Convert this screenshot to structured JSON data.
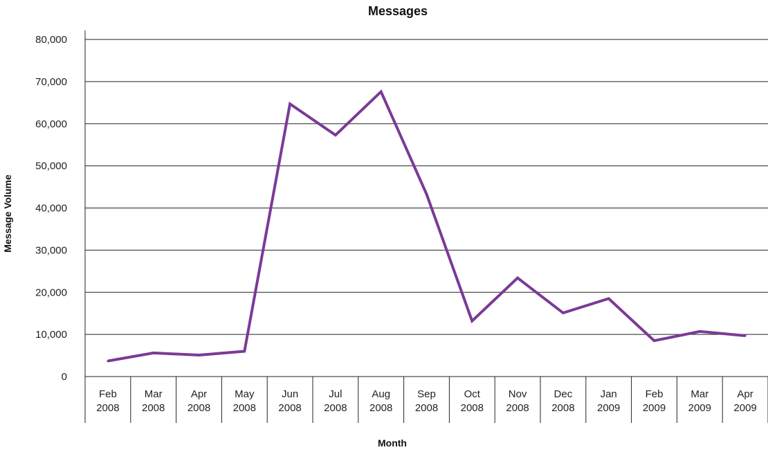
{
  "chart_data": {
    "type": "line",
    "title": "Messages",
    "xlabel": "Month",
    "ylabel": "Message Volume",
    "ylim": [
      0,
      80000
    ],
    "y_ticks": [
      "0",
      "10,000",
      "20,000",
      "30,000",
      "40,000",
      "50,000",
      "60,000",
      "70,000",
      "80,000"
    ],
    "categories": [
      [
        "Feb",
        "2008"
      ],
      [
        "Mar",
        "2008"
      ],
      [
        "Apr",
        "2008"
      ],
      [
        "May",
        "2008"
      ],
      [
        "Jun",
        "2008"
      ],
      [
        "Jul",
        "2008"
      ],
      [
        "Aug",
        "2008"
      ],
      [
        "Sep",
        "2008"
      ],
      [
        "Oct",
        "2008"
      ],
      [
        "Nov",
        "2008"
      ],
      [
        "Dec",
        "2008"
      ],
      [
        "Jan",
        "2009"
      ],
      [
        "Feb",
        "2009"
      ],
      [
        "Mar",
        "2009"
      ],
      [
        "Apr",
        "2009"
      ]
    ],
    "series": [
      {
        "color": "#7b3a96",
        "values": [
          3700,
          5600,
          5100,
          6000,
          64700,
          57300,
          67600,
          43300,
          13200,
          23400,
          15100,
          18500,
          8500,
          10700,
          9700
        ]
      }
    ],
    "grid": "horizontal"
  }
}
